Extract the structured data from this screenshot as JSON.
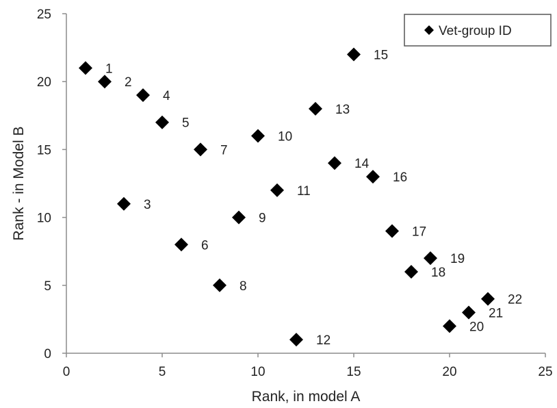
{
  "chart_data": {
    "type": "scatter",
    "title": "",
    "xlabel": "Rank, in model A",
    "ylabel": "Rank  - in Model B",
    "xlim": [
      0,
      25
    ],
    "ylim": [
      0,
      25
    ],
    "xticks": [
      0,
      5,
      10,
      15,
      20,
      25
    ],
    "yticks": [
      0,
      5,
      10,
      15,
      20,
      25
    ],
    "grid": false,
    "legend_position": "top-right",
    "series": [
      {
        "name": "Vet-group ID",
        "marker": "diamond",
        "color": "#000000",
        "points": [
          {
            "x": 1,
            "y": 21,
            "label": "1"
          },
          {
            "x": 2,
            "y": 20,
            "label": "2"
          },
          {
            "x": 3,
            "y": 11,
            "label": "3"
          },
          {
            "x": 4,
            "y": 19,
            "label": "4"
          },
          {
            "x": 5,
            "y": 17,
            "label": "5"
          },
          {
            "x": 6,
            "y": 8,
            "label": "6"
          },
          {
            "x": 7,
            "y": 15,
            "label": "7"
          },
          {
            "x": 8,
            "y": 5,
            "label": "8"
          },
          {
            "x": 9,
            "y": 10,
            "label": "9"
          },
          {
            "x": 10,
            "y": 16,
            "label": "10"
          },
          {
            "x": 11,
            "y": 12,
            "label": "11"
          },
          {
            "x": 12,
            "y": 1,
            "label": "12"
          },
          {
            "x": 13,
            "y": 18,
            "label": "13"
          },
          {
            "x": 14,
            "y": 14,
            "label": "14"
          },
          {
            "x": 15,
            "y": 22,
            "label": "15"
          },
          {
            "x": 16,
            "y": 13,
            "label": "16"
          },
          {
            "x": 17,
            "y": 9,
            "label": "17"
          },
          {
            "x": 18,
            "y": 6,
            "label": "18"
          },
          {
            "x": 19,
            "y": 7,
            "label": "19"
          },
          {
            "x": 20,
            "y": 2,
            "label": "20"
          },
          {
            "x": 21,
            "y": 3,
            "label": "21"
          },
          {
            "x": 22,
            "y": 4,
            "label": "22"
          }
        ]
      }
    ]
  }
}
